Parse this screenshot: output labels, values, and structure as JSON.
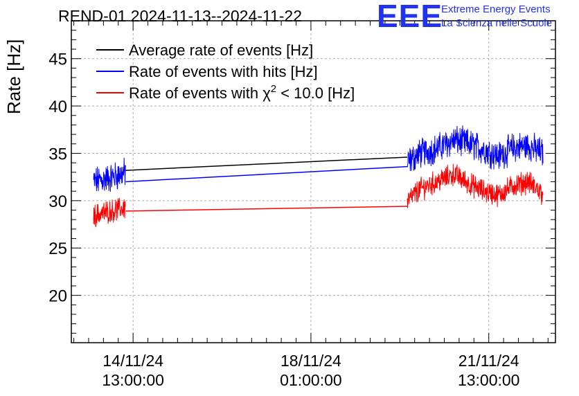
{
  "header": {
    "title": "REND-01 2024-11-13--2024-11-22"
  },
  "logo": {
    "mark": "EEE",
    "line1": "Extreme Energy Events",
    "line2": "La Scienza nelle Scuole"
  },
  "colors": {
    "average": "#000000",
    "hits": "#0000ff",
    "chi2": "#ff0000",
    "logo": "#2233ee",
    "grid": "#aaaaaa"
  },
  "chart_data": {
    "type": "line",
    "title": "REND-01 2024-11-13--2024-11-22",
    "ylabel": "Rate [Hz]",
    "xlabel": "",
    "ylim": [
      15,
      49
    ],
    "xlim_hours": [
      -133,
      63
    ],
    "yticks": [
      20,
      25,
      30,
      35,
      40,
      45
    ],
    "xticks": [
      {
        "hours": -108,
        "label1": "14/11/24",
        "label2": "13:00:00"
      },
      {
        "hours": -36,
        "label1": "18/11/24",
        "label2": "01:00:00"
      },
      {
        "hours": 36,
        "label1": "21/11/24",
        "label2": "13:00:00"
      }
    ],
    "x_units": "hours relative to 20/11/24 01:00:00",
    "grid": true,
    "legend_position": "top-left",
    "legend": [
      {
        "key": "average",
        "prefix": "Average rate of events [Hz]",
        "sup": "",
        "suffix": ""
      },
      {
        "key": "hits",
        "prefix": "Rate of events with hits [Hz]",
        "sup": "",
        "suffix": ""
      },
      {
        "key": "chi2",
        "prefix": "Rate of events with χ",
        "sup": "2",
        "suffix": " < 10.0 [Hz]"
      }
    ],
    "series": [
      {
        "name": "Average rate of events [Hz]",
        "key": "average",
        "noise": 0,
        "segments": [
          {
            "x": [
              -111,
              -111
            ],
            "y": [
              32.5,
              32.5
            ]
          },
          {
            "x": [
              -111,
              3
            ],
            "y": [
              33.2,
              34.6
            ]
          }
        ]
      },
      {
        "name": "Rate of events with hits [Hz]",
        "key": "hits",
        "noise": 1.3,
        "segments": [
          {
            "x": [
              -124,
              -119,
              -115,
              -111
            ],
            "y": [
              32.0,
              32.3,
              32.6,
              33.0
            ]
          },
          {
            "x": [
              -111,
              3
            ],
            "y": [
              32.0,
              33.6
            ]
          },
          {
            "x": [
              3,
              8,
              15,
              22,
              28,
              34,
              40,
              46,
              52,
              58
            ],
            "y": [
              34.0,
              35.0,
              35.5,
              36.4,
              36.0,
              35.4,
              34.7,
              35.6,
              35.8,
              35.0
            ]
          }
        ]
      },
      {
        "name": "Rate of events with chi2 < 10.0 [Hz]",
        "key": "chi2",
        "noise": 1.0,
        "segments": [
          {
            "x": [
              -124,
              -119,
              -115,
              -111
            ],
            "y": [
              28.4,
              28.8,
              29.0,
              29.3
            ]
          },
          {
            "x": [
              -111,
              3
            ],
            "y": [
              28.9,
              29.4
            ]
          },
          {
            "x": [
              3,
              8,
              15,
              22,
              28,
              34,
              40,
              46,
              52,
              58
            ],
            "y": [
              29.9,
              31.2,
              32.0,
              32.8,
              31.8,
              31.0,
              30.6,
              31.6,
              32.0,
              30.7
            ]
          }
        ]
      }
    ]
  }
}
